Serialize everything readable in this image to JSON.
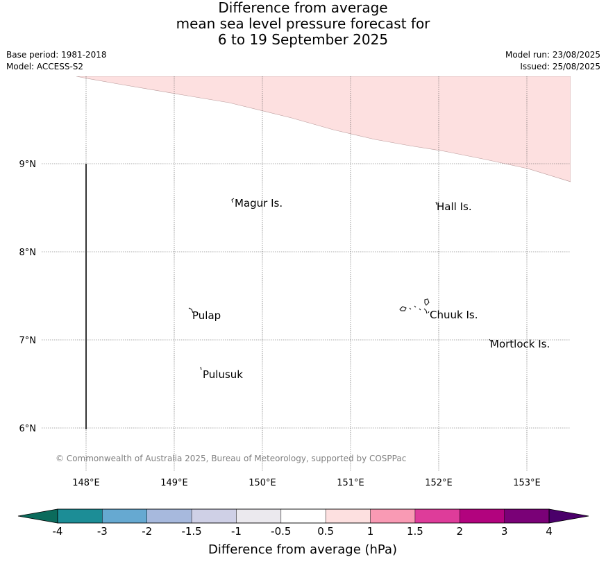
{
  "title": {
    "line1": "Difference from average",
    "line2": "mean sea level pressure forecast for",
    "line3": "6 to 19 September 2025"
  },
  "meta": {
    "base_period": "Base period: 1981-2018",
    "model": "Model: ACCESS-S2",
    "model_run": "Model run: 23/08/2025",
    "issued": "Issued: 25/08/2025"
  },
  "map": {
    "latitude_labels": [
      "9°N",
      "8°N",
      "7°N",
      "6°N"
    ],
    "longitude_labels": [
      "148°E",
      "149°E",
      "150°E",
      "151°E",
      "152°E",
      "153°E"
    ],
    "place_labels": [
      "Magur Is.",
      "Hall Is.",
      "Pulap",
      "Chuuk Is.",
      "Mortlock Is.",
      "Pulusuk"
    ],
    "shaded_anomaly_band": "0.5 to 1",
    "copyright": "© Commonwealth of Australia 2025, Bureau of Meteorology, supported by COSPPac"
  },
  "colorbar": {
    "label": "Difference from average (hPa)",
    "tick_labels": [
      "-4",
      "-3",
      "-2",
      "-1.5",
      "-1",
      "-0.5",
      "0.5",
      "1",
      "1.5",
      "2",
      "3",
      "4"
    ],
    "colors": {
      "below_min": "#0b6b5c",
      "bins": [
        "#1c8d96",
        "#66a9d1",
        "#a7b9dd",
        "#cfd0e6",
        "#ebe9ee",
        "#ffffff",
        "#fde0e0",
        "#f99ab4",
        "#de3c9a",
        "#b2037e",
        "#7a0177"
      ],
      "above_max": "#4a006a"
    }
  }
}
